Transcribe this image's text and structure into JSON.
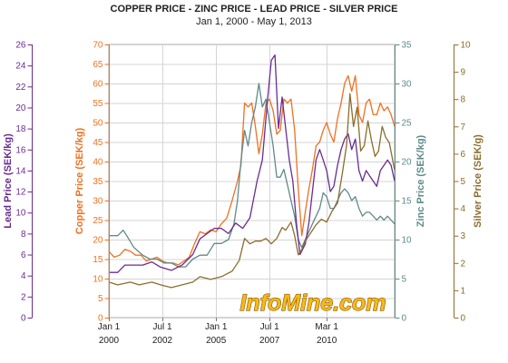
{
  "chart_data": {
    "type": "line",
    "title": "COPPER PRICE - ZINC PRICE - LEAD PRICE - SILVER PRICE",
    "subtitle": "Jan 1, 2000 - May 1, 2013",
    "watermark": "InfoMine.com",
    "x_ticks": [
      {
        "date": "2000-01-01",
        "line1": "Jan 1",
        "line2": "2000"
      },
      {
        "date": "2002-07-01",
        "line1": "Jul 1",
        "line2": "2002"
      },
      {
        "date": "2005-01-01",
        "line1": "Jan 1",
        "line2": "2005"
      },
      {
        "date": "2007-07-01",
        "line1": "Jul 1",
        "line2": "2007"
      },
      {
        "date": "2010-03-01",
        "line1": "Mar 1",
        "line2": "2010"
      }
    ],
    "xlim": [
      "2000-01-01",
      "2013-05-01"
    ],
    "grid": true,
    "axes": [
      {
        "key": "lead",
        "label": "Lead Price (SEK/kg)",
        "min": 0,
        "max": 26,
        "step": 2,
        "color": "#6a2c91",
        "position": "far-left"
      },
      {
        "key": "copper",
        "label": "Copper Price (SEK/kg)",
        "min": 0,
        "max": 70,
        "step": 5,
        "color": "#f07020",
        "position": "left"
      },
      {
        "key": "zinc",
        "label": "Zinc Price (SEK/kg)",
        "min": 0,
        "max": 35,
        "step": 5,
        "color": "#5f8a8b",
        "position": "right"
      },
      {
        "key": "silver",
        "label": "Silver Price (SEK/g)",
        "min": 0,
        "max": 10,
        "step": 1,
        "color": "#8c6d2c",
        "position": "far-right"
      }
    ],
    "series": [
      {
        "name": "Copper",
        "axis": "copper",
        "color": "#f07020",
        "points": [
          [
            "2000-01-01",
            17
          ],
          [
            "2000-04-01",
            15.5
          ],
          [
            "2000-07-01",
            16
          ],
          [
            "2000-10-01",
            17.5
          ],
          [
            "2001-01-01",
            17
          ],
          [
            "2001-04-01",
            16
          ],
          [
            "2001-07-01",
            16
          ],
          [
            "2001-10-01",
            14.5
          ],
          [
            "2002-01-01",
            15
          ],
          [
            "2002-04-01",
            15.5
          ],
          [
            "2002-07-01",
            14.5
          ],
          [
            "2002-10-01",
            14
          ],
          [
            "2003-01-01",
            14
          ],
          [
            "2003-04-01",
            13.5
          ],
          [
            "2003-07-01",
            14.5
          ],
          [
            "2003-10-01",
            15.5
          ],
          [
            "2004-01-01",
            19
          ],
          [
            "2004-04-01",
            22
          ],
          [
            "2004-07-01",
            21.5
          ],
          [
            "2004-10-01",
            22.5
          ],
          [
            "2005-01-01",
            22
          ],
          [
            "2005-04-01",
            24
          ],
          [
            "2005-07-01",
            25.5
          ],
          [
            "2005-10-01",
            30
          ],
          [
            "2006-01-01",
            35
          ],
          [
            "2006-03-01",
            39
          ],
          [
            "2006-05-01",
            55
          ],
          [
            "2006-07-01",
            54
          ],
          [
            "2006-09-01",
            55
          ],
          [
            "2006-11-01",
            49
          ],
          [
            "2007-01-01",
            42
          ],
          [
            "2007-03-01",
            47
          ],
          [
            "2007-05-01",
            55
          ],
          [
            "2007-07-01",
            56
          ],
          [
            "2007-09-01",
            53
          ],
          [
            "2007-11-01",
            47
          ],
          [
            "2008-01-01",
            48
          ],
          [
            "2008-03-01",
            56
          ],
          [
            "2008-05-01",
            55
          ],
          [
            "2008-07-01",
            56
          ],
          [
            "2008-09-01",
            48
          ],
          [
            "2008-11-01",
            33
          ],
          [
            "2009-01-01",
            21
          ],
          [
            "2009-03-01",
            27
          ],
          [
            "2009-05-01",
            33
          ],
          [
            "2009-07-01",
            38
          ],
          [
            "2009-09-01",
            44
          ],
          [
            "2009-11-01",
            45
          ],
          [
            "2010-01-01",
            48
          ],
          [
            "2010-03-01",
            50
          ],
          [
            "2010-05-01",
            47
          ],
          [
            "2010-07-01",
            45
          ],
          [
            "2010-09-01",
            51
          ],
          [
            "2010-11-01",
            55
          ],
          [
            "2011-01-01",
            60
          ],
          [
            "2011-03-01",
            62
          ],
          [
            "2011-05-01",
            58
          ],
          [
            "2011-07-01",
            62
          ],
          [
            "2011-09-01",
            52
          ],
          [
            "2011-11-01",
            50
          ],
          [
            "2012-01-01",
            55
          ],
          [
            "2012-03-01",
            56
          ],
          [
            "2012-05-01",
            52
          ],
          [
            "2012-07-01",
            52
          ],
          [
            "2012-09-01",
            55
          ],
          [
            "2012-11-01",
            53
          ],
          [
            "2013-01-01",
            54
          ],
          [
            "2013-03-01",
            52
          ],
          [
            "2013-05-01",
            49
          ]
        ]
      },
      {
        "name": "Zinc",
        "axis": "zinc",
        "color": "#5f8a8b",
        "points": [
          [
            "2000-01-01",
            10.5
          ],
          [
            "2000-06-01",
            10.5
          ],
          [
            "2000-09-01",
            11.2
          ],
          [
            "2000-11-01",
            10.5
          ],
          [
            "2001-03-01",
            9
          ],
          [
            "2001-08-01",
            8
          ],
          [
            "2001-12-01",
            7.5
          ],
          [
            "2002-04-01",
            7.5
          ],
          [
            "2002-08-01",
            7
          ],
          [
            "2002-12-01",
            7
          ],
          [
            "2003-04-01",
            6.5
          ],
          [
            "2003-08-01",
            6.5
          ],
          [
            "2003-12-01",
            7.5
          ],
          [
            "2004-04-01",
            8
          ],
          [
            "2004-08-01",
            8
          ],
          [
            "2004-12-01",
            9.5
          ],
          [
            "2005-04-01",
            9.5
          ],
          [
            "2005-08-01",
            10
          ],
          [
            "2005-11-01",
            12
          ],
          [
            "2006-01-01",
            15
          ],
          [
            "2006-03-01",
            20
          ],
          [
            "2006-05-01",
            24
          ],
          [
            "2006-07-01",
            22
          ],
          [
            "2006-09-01",
            25
          ],
          [
            "2006-11-01",
            27
          ],
          [
            "2007-01-01",
            30
          ],
          [
            "2007-03-01",
            27
          ],
          [
            "2007-05-01",
            28
          ],
          [
            "2007-07-01",
            25
          ],
          [
            "2007-09-01",
            22
          ],
          [
            "2007-11-01",
            18
          ],
          [
            "2008-01-01",
            18
          ],
          [
            "2008-03-01",
            19
          ],
          [
            "2008-05-01",
            17
          ],
          [
            "2008-07-01",
            15
          ],
          [
            "2008-09-01",
            13
          ],
          [
            "2008-11-01",
            10
          ],
          [
            "2009-01-01",
            9
          ],
          [
            "2009-03-01",
            10
          ],
          [
            "2009-05-01",
            11
          ],
          [
            "2009-07-01",
            12
          ],
          [
            "2009-09-01",
            13
          ],
          [
            "2009-11-01",
            14
          ],
          [
            "2010-01-01",
            16
          ],
          [
            "2010-03-01",
            15.5
          ],
          [
            "2010-05-01",
            14
          ],
          [
            "2010-07-01",
            14
          ],
          [
            "2010-09-01",
            15
          ],
          [
            "2010-11-01",
            16
          ],
          [
            "2011-01-01",
            16.5
          ],
          [
            "2011-03-01",
            16
          ],
          [
            "2011-05-01",
            15
          ],
          [
            "2011-07-01",
            15.5
          ],
          [
            "2011-09-01",
            14
          ],
          [
            "2011-11-01",
            13
          ],
          [
            "2012-01-01",
            13.5
          ],
          [
            "2012-03-01",
            13.5
          ],
          [
            "2012-05-01",
            13
          ],
          [
            "2012-07-01",
            12.5
          ],
          [
            "2012-09-01",
            13
          ],
          [
            "2012-11-01",
            12.5
          ],
          [
            "2013-01-01",
            13
          ],
          [
            "2013-03-01",
            12.5
          ],
          [
            "2013-05-01",
            12
          ]
        ]
      },
      {
        "name": "Lead",
        "axis": "lead",
        "color": "#6a2c91",
        "points": [
          [
            "2000-01-01",
            4.3
          ],
          [
            "2000-06-01",
            4.3
          ],
          [
            "2000-10-01",
            5
          ],
          [
            "2001-03-01",
            5
          ],
          [
            "2001-08-01",
            5
          ],
          [
            "2002-01-01",
            5.3
          ],
          [
            "2002-06-01",
            4.8
          ],
          [
            "2002-12-01",
            4.5
          ],
          [
            "2003-06-01",
            5
          ],
          [
            "2003-12-01",
            6
          ],
          [
            "2004-04-01",
            7.5
          ],
          [
            "2004-08-01",
            8
          ],
          [
            "2004-12-01",
            8.5
          ],
          [
            "2005-04-01",
            8.5
          ],
          [
            "2005-08-01",
            8
          ],
          [
            "2005-12-01",
            9
          ],
          [
            "2006-04-01",
            8.5
          ],
          [
            "2006-08-01",
            9.5
          ],
          [
            "2006-12-01",
            13
          ],
          [
            "2007-03-01",
            15
          ],
          [
            "2007-06-01",
            21
          ],
          [
            "2007-08-01",
            24.5
          ],
          [
            "2007-10-01",
            25
          ],
          [
            "2007-12-01",
            18
          ],
          [
            "2008-02-01",
            21
          ],
          [
            "2008-04-01",
            18
          ],
          [
            "2008-06-01",
            15
          ],
          [
            "2008-08-01",
            13
          ],
          [
            "2008-10-01",
            9
          ],
          [
            "2008-12-01",
            6
          ],
          [
            "2009-03-01",
            7
          ],
          [
            "2009-05-01",
            9
          ],
          [
            "2009-07-01",
            12
          ],
          [
            "2009-09-01",
            15
          ],
          [
            "2009-11-01",
            16
          ],
          [
            "2010-01-01",
            15
          ],
          [
            "2010-03-01",
            14
          ],
          [
            "2010-05-01",
            12
          ],
          [
            "2010-07-01",
            12.5
          ],
          [
            "2010-09-01",
            14.5
          ],
          [
            "2010-11-01",
            16
          ],
          [
            "2011-01-01",
            17
          ],
          [
            "2011-03-01",
            17.5
          ],
          [
            "2011-05-01",
            16
          ],
          [
            "2011-07-01",
            17
          ],
          [
            "2011-09-01",
            14
          ],
          [
            "2011-11-01",
            13
          ],
          [
            "2012-01-01",
            14
          ],
          [
            "2012-03-01",
            13.5
          ],
          [
            "2012-05-01",
            13
          ],
          [
            "2012-07-01",
            12.5
          ],
          [
            "2012-09-01",
            14
          ],
          [
            "2012-11-01",
            14.5
          ],
          [
            "2013-01-01",
            15
          ],
          [
            "2013-03-01",
            14.5
          ],
          [
            "2013-05-01",
            13
          ]
        ]
      },
      {
        "name": "Silver",
        "axis": "silver",
        "color": "#8c6d2c",
        "points": [
          [
            "2000-01-01",
            1.3
          ],
          [
            "2000-06-01",
            1.2
          ],
          [
            "2001-01-01",
            1.3
          ],
          [
            "2001-06-01",
            1.2
          ],
          [
            "2002-01-01",
            1.3
          ],
          [
            "2002-06-01",
            1.2
          ],
          [
            "2002-12-01",
            1.1
          ],
          [
            "2003-06-01",
            1.2
          ],
          [
            "2003-12-01",
            1.3
          ],
          [
            "2004-04-01",
            1.5
          ],
          [
            "2004-10-01",
            1.4
          ],
          [
            "2005-04-01",
            1.5
          ],
          [
            "2005-10-01",
            1.7
          ],
          [
            "2006-02-01",
            2.1
          ],
          [
            "2006-05-01",
            2.9
          ],
          [
            "2006-08-01",
            2.7
          ],
          [
            "2006-11-01",
            2.8
          ],
          [
            "2007-02-01",
            2.8
          ],
          [
            "2007-05-01",
            2.9
          ],
          [
            "2007-08-01",
            2.7
          ],
          [
            "2007-11-01",
            2.9
          ],
          [
            "2008-02-01",
            3.3
          ],
          [
            "2008-04-01",
            3.2
          ],
          [
            "2008-07-01",
            3.5
          ],
          [
            "2008-09-01",
            3
          ],
          [
            "2008-11-01",
            2.3
          ],
          [
            "2009-01-01",
            2.5
          ],
          [
            "2009-03-01",
            2.8
          ],
          [
            "2009-06-01",
            3.1
          ],
          [
            "2009-09-01",
            3.4
          ],
          [
            "2009-12-01",
            3.6
          ],
          [
            "2010-03-01",
            3.5
          ],
          [
            "2010-06-01",
            3.9
          ],
          [
            "2010-09-01",
            4.2
          ],
          [
            "2010-12-01",
            5.4
          ],
          [
            "2011-02-01",
            6.3
          ],
          [
            "2011-04-01",
            8.2
          ],
          [
            "2011-06-01",
            7
          ],
          [
            "2011-08-01",
            7.7
          ],
          [
            "2011-10-01",
            6.1
          ],
          [
            "2011-12-01",
            6.3
          ],
          [
            "2012-02-01",
            7.2
          ],
          [
            "2012-04-01",
            6.5
          ],
          [
            "2012-06-01",
            5.9
          ],
          [
            "2012-08-01",
            6.1
          ],
          [
            "2012-10-01",
            7
          ],
          [
            "2012-12-01",
            6.6
          ],
          [
            "2013-02-01",
            6.4
          ],
          [
            "2013-05-01",
            5.4
          ]
        ]
      }
    ]
  }
}
